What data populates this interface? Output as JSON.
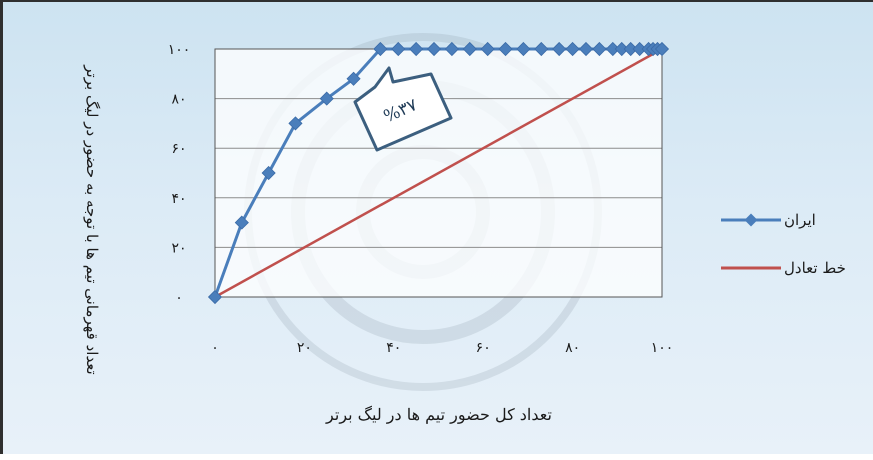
{
  "chart_data": {
    "type": "line",
    "xlabel": "تعداد کل حضور تیم ها در لیگ برتر",
    "ylabel": "تعداد قهرمانی تیم ها با توجه به حضور در لیگ برتر",
    "xlim": [
      0,
      100
    ],
    "ylim": [
      0,
      100
    ],
    "x_ticks": [
      "۰",
      "۲۰",
      "۴۰",
      "۶۰",
      "۸۰",
      "۱۰۰"
    ],
    "y_ticks": [
      "۰",
      "۲۰",
      "۴۰",
      "۶۰",
      "۸۰",
      "۱۰۰"
    ],
    "grid": true,
    "legend_position": "right",
    "annotation": "%۳۷",
    "series": [
      {
        "name": "ایران",
        "color": "#4a7ebb",
        "marker": "diamond",
        "x": [
          0,
          6,
          12,
          18,
          25,
          31,
          37,
          41,
          45,
          49,
          53,
          57,
          61,
          65,
          69,
          73,
          77,
          80,
          83,
          86,
          89,
          91,
          93,
          95,
          97,
          98,
          99,
          100
        ],
        "y": [
          0,
          30,
          50,
          70,
          80,
          88,
          100,
          100,
          100,
          100,
          100,
          100,
          100,
          100,
          100,
          100,
          100,
          100,
          100,
          100,
          100,
          100,
          100,
          100,
          100,
          100,
          100,
          100
        ]
      },
      {
        "name": "خط تعادل",
        "color": "#c0504d",
        "marker": "none",
        "x": [
          0,
          100
        ],
        "y": [
          0,
          100
        ]
      }
    ]
  }
}
